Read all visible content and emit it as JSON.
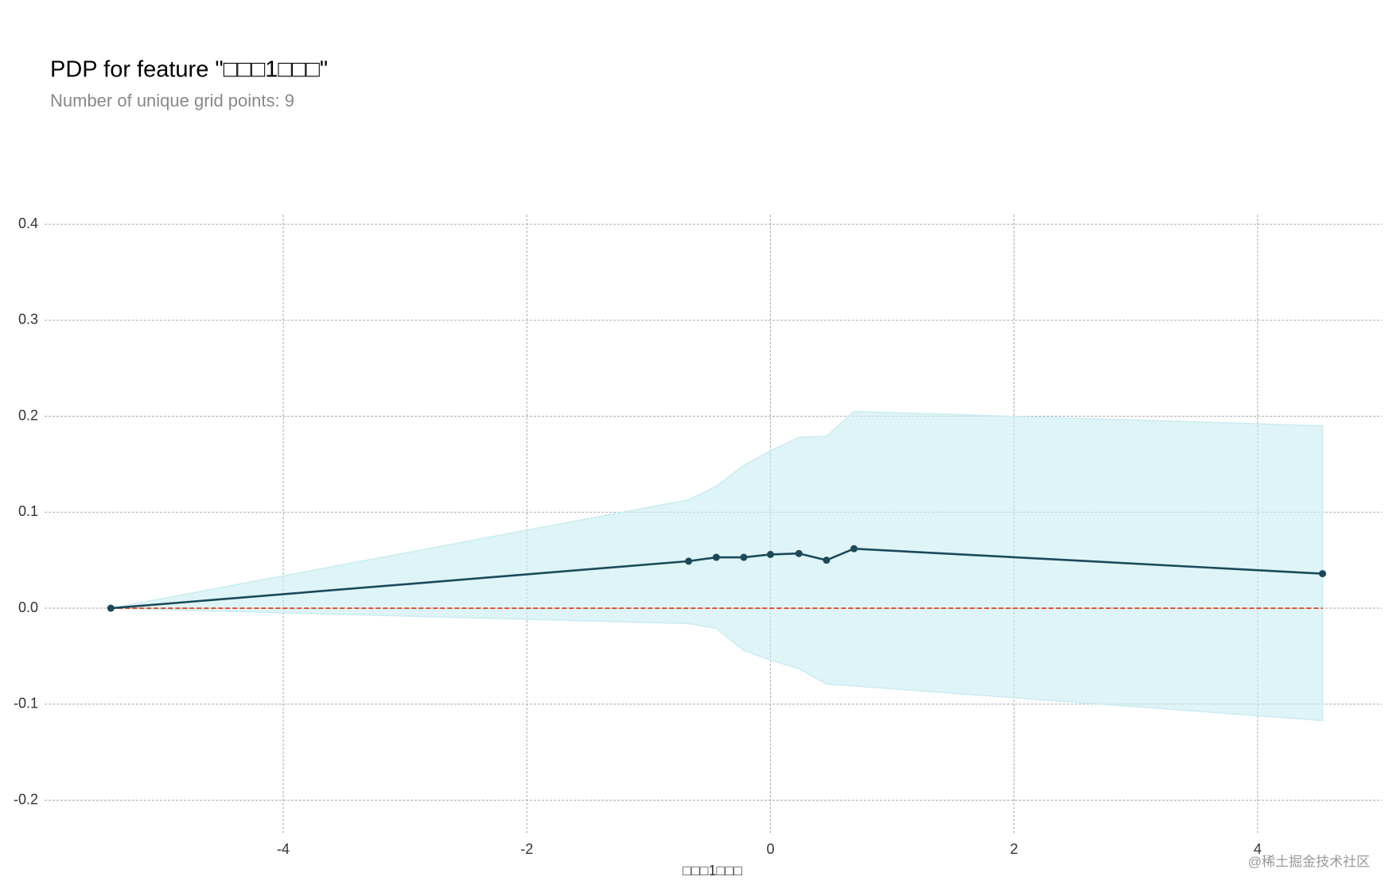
{
  "chart_data": {
    "type": "line",
    "title": "PDP for feature \"□□□1□□□\"",
    "subtitle": "Number of unique grid points: 9",
    "xlabel": "□□□1□□□",
    "watermark": "@稀土掘金技术社区",
    "x": [
      -5.416,
      -0.672,
      -0.445,
      -0.219,
      0,
      0.234,
      0.46,
      0.686,
      4.533
    ],
    "values": [
      0,
      0.049,
      0.053,
      0.053,
      0.056,
      0.057,
      0.05,
      0.062,
      0.036
    ],
    "upper": [
      0,
      0.113,
      0.127,
      0.149,
      0.164,
      0.178,
      0.179,
      0.205,
      0.19
    ],
    "lower": [
      0,
      -0.016,
      -0.021,
      -0.044,
      -0.054,
      -0.063,
      -0.079,
      -0.081,
      -0.117
    ],
    "baseline": 0,
    "color": "#1a4a5a",
    "band_color": "#c9ecf2",
    "baseline_color": "#e04c2a",
    "xlim": [
      -5.96,
      5.02
    ],
    "ylim": [
      -0.236,
      0.41
    ],
    "xticks": [
      -4,
      -2,
      0,
      2,
      4
    ],
    "yticks": [
      {
        "value": -0.2,
        "label": "-0.2"
      },
      {
        "value": -0.1,
        "label": "-0.1"
      },
      {
        "value": 0,
        "label": "0.0"
      },
      0.1,
      0.2,
      0.3,
      0.4
    ],
    "grid": true
  }
}
